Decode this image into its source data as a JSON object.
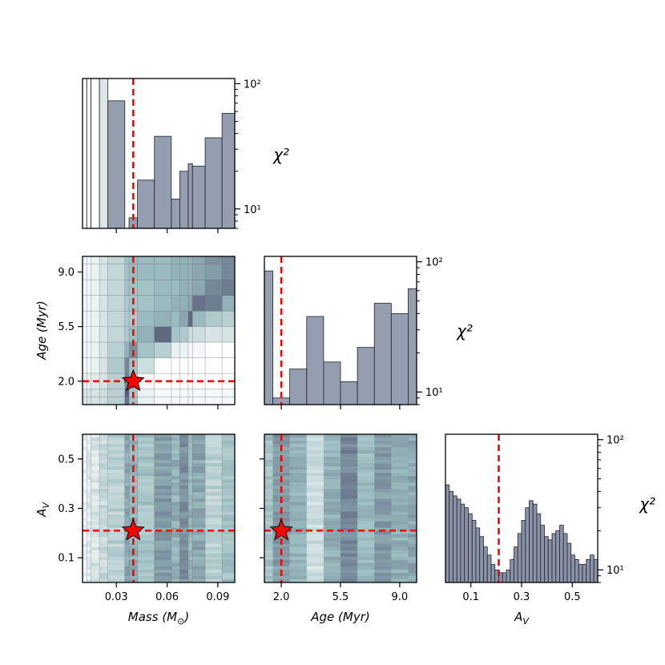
{
  "chart_data": {
    "type": "corner",
    "colors": {
      "bar": "#8a93a6",
      "bar_edge": "#1f2230",
      "marker": "#ff0000",
      "cmap_low": "#ffffff",
      "cmap_mid": "#9bbcbf",
      "cmap_high": "#4f5470"
    },
    "best_fit": {
      "mass": 0.04,
      "age": 2.0,
      "av": 0.21
    },
    "hist_ylabel": "χ²",
    "panels": {
      "mass_hist": {
        "type": "bar",
        "yscale": "log",
        "ylim": [
          7,
          110
        ],
        "xlim": [
          0.01,
          0.1
        ],
        "yticks": [
          "10¹",
          "10²"
        ],
        "bins": [
          {
            "x0": 0.01,
            "x1": 0.0125,
            "y": 110
          },
          {
            "x0": 0.0125,
            "x1": 0.015,
            "y": 110
          },
          {
            "x0": 0.015,
            "x1": 0.02,
            "y": 110
          },
          {
            "x0": 0.02,
            "x1": 0.025,
            "y": 110
          },
          {
            "x0": 0.025,
            "x1": 0.035,
            "y": 73
          },
          {
            "x0": 0.0375,
            "x1": 0.0425,
            "y": 8.5
          },
          {
            "x0": 0.0425,
            "x1": 0.0525,
            "y": 17
          },
          {
            "x0": 0.0525,
            "x1": 0.0625,
            "y": 38
          },
          {
            "x0": 0.0625,
            "x1": 0.0675,
            "y": 12
          },
          {
            "x0": 0.0675,
            "x1": 0.0725,
            "y": 20
          },
          {
            "x0": 0.0725,
            "x1": 0.075,
            "y": 23
          },
          {
            "x0": 0.075,
            "x1": 0.0825,
            "y": 22
          },
          {
            "x0": 0.0825,
            "x1": 0.0925,
            "y": 37
          },
          {
            "x0": 0.0925,
            "x1": 0.1,
            "y": 58
          }
        ]
      },
      "age_hist": {
        "type": "bar",
        "yscale": "log",
        "ylim": [
          8,
          110
        ],
        "xlim": [
          1.0,
          10.0
        ],
        "yticks": [
          "10¹",
          "10²"
        ],
        "bins": [
          {
            "x0": 1.0,
            "x1": 1.5,
            "y": 85
          },
          {
            "x0": 1.5,
            "x1": 2.5,
            "y": 9
          },
          {
            "x0": 2.5,
            "x1": 3.5,
            "y": 15
          },
          {
            "x0": 3.5,
            "x1": 4.5,
            "y": 38
          },
          {
            "x0": 4.5,
            "x1": 5.5,
            "y": 17
          },
          {
            "x0": 5.5,
            "x1": 6.5,
            "y": 12
          },
          {
            "x0": 6.5,
            "x1": 7.5,
            "y": 22
          },
          {
            "x0": 7.5,
            "x1": 8.5,
            "y": 48
          },
          {
            "x0": 8.5,
            "x1": 9.5,
            "y": 40
          },
          {
            "x0": 9.5,
            "x1": 10.0,
            "y": 62
          }
        ]
      },
      "av_hist": {
        "type": "bar",
        "yscale": "log",
        "ylim": [
          8,
          110
        ],
        "xlim": [
          0.0,
          0.6
        ],
        "bin_width": 0.015,
        "values": [
          45,
          40,
          37,
          35,
          32,
          30,
          27,
          24,
          21,
          18,
          15,
          13,
          11,
          10,
          9.5,
          9.5,
          10,
          12,
          15,
          19,
          24,
          30,
          34,
          32,
          27,
          22,
          18,
          17,
          19,
          20,
          22,
          19,
          16,
          13,
          12,
          11,
          11,
          12,
          13,
          12
        ],
        "yticks": [
          "10¹",
          "10²"
        ]
      },
      "age_vs_mass": {
        "type": "heatmap",
        "xlim": [
          0.01,
          0.1
        ],
        "ylim": [
          0.5,
          10.0
        ],
        "x_edges": [
          0.01,
          0.0125,
          0.015,
          0.02,
          0.025,
          0.035,
          0.0375,
          0.0425,
          0.0525,
          0.0625,
          0.0675,
          0.0725,
          0.075,
          0.0825,
          0.0925,
          0.1
        ],
        "y_edges": [
          0.5,
          1.0,
          1.5,
          2.5,
          3.5,
          4.5,
          5.5,
          6.5,
          7.5,
          8.5,
          9.5,
          10.0
        ],
        "z": [
          [
            0.2,
            0.2,
            0.2,
            0.25,
            0.35,
            0.85,
            0.45,
            0.1,
            0.05,
            0.05,
            0.05,
            0.05,
            0.05,
            0.05,
            0.05
          ],
          [
            0.2,
            0.2,
            0.2,
            0.25,
            0.35,
            0.95,
            0.4,
            0.1,
            0.05,
            0.05,
            0.05,
            0.05,
            0.05,
            0.05,
            0.05
          ],
          [
            0.1,
            0.1,
            0.15,
            0.2,
            0.35,
            0.8,
            0.4,
            0.05,
            0.0,
            0.0,
            0.0,
            0.0,
            0.0,
            0.0,
            0.0
          ],
          [
            0.05,
            0.05,
            0.1,
            0.2,
            0.4,
            0.75,
            0.45,
            0.25,
            0.0,
            0.0,
            0.0,
            0.0,
            0.0,
            0.0,
            0.0
          ],
          [
            0.05,
            0.05,
            0.1,
            0.2,
            0.35,
            0.55,
            0.7,
            0.45,
            0.35,
            0.1,
            0.1,
            0.05,
            0.05,
            0.0,
            0.0
          ],
          [
            0.05,
            0.05,
            0.1,
            0.2,
            0.3,
            0.4,
            0.5,
            0.55,
            0.9,
            0.45,
            0.4,
            0.25,
            0.25,
            0.2,
            0.2
          ],
          [
            0.05,
            0.05,
            0.1,
            0.2,
            0.3,
            0.4,
            0.4,
            0.5,
            0.55,
            0.5,
            0.6,
            0.9,
            0.5,
            0.4,
            0.35
          ],
          [
            0.05,
            0.05,
            0.1,
            0.2,
            0.3,
            0.4,
            0.45,
            0.45,
            0.5,
            0.55,
            0.55,
            0.6,
            0.85,
            0.8,
            0.55
          ],
          [
            0.05,
            0.05,
            0.1,
            0.2,
            0.3,
            0.45,
            0.45,
            0.45,
            0.5,
            0.5,
            0.55,
            0.55,
            0.6,
            0.75,
            0.8
          ],
          [
            0.05,
            0.05,
            0.1,
            0.2,
            0.3,
            0.45,
            0.5,
            0.5,
            0.5,
            0.55,
            0.55,
            0.55,
            0.6,
            0.65,
            0.75
          ],
          [
            0.05,
            0.05,
            0.1,
            0.2,
            0.3,
            0.45,
            0.5,
            0.5,
            0.5,
            0.55,
            0.55,
            0.55,
            0.6,
            0.7,
            0.75
          ]
        ]
      },
      "av_vs_mass": {
        "type": "heatmap",
        "xlim": [
          0.01,
          0.1
        ],
        "ylim": [
          0.0,
          0.6
        ],
        "x_edges": [
          0.01,
          0.0125,
          0.015,
          0.02,
          0.025,
          0.035,
          0.0375,
          0.0425,
          0.0525,
          0.0625,
          0.0675,
          0.0725,
          0.075,
          0.0825,
          0.0925,
          0.1
        ],
        "col_level": [
          0.1,
          0.15,
          0.2,
          0.28,
          0.35,
          0.6,
          0.55,
          0.45,
          0.65,
          0.55,
          0.7,
          0.55,
          0.6,
          0.35,
          0.45
        ]
      },
      "av_vs_age": {
        "type": "heatmap",
        "xlim": [
          1.0,
          10.0
        ],
        "ylim": [
          0.0,
          0.6
        ],
        "x_edges": [
          1.0,
          1.5,
          2.5,
          3.5,
          4.5,
          5.5,
          6.5,
          7.5,
          8.5,
          9.5,
          10.0
        ],
        "col_level": [
          0.45,
          0.65,
          0.55,
          0.25,
          0.55,
          0.75,
          0.5,
          0.65,
          0.55,
          0.6
        ]
      }
    },
    "tick_labels": {
      "mass": [
        "0.03",
        "0.06",
        "0.09"
      ],
      "age": [
        "2.0",
        "5.5",
        "9.0"
      ],
      "av": [
        "0.1",
        "0.3",
        "0.5"
      ]
    },
    "axis_labels": {
      "mass": "Mass (M",
      "mass_sun": "⊙",
      "mass_close": ")",
      "age": "Age (Myr)",
      "av": "A",
      "av_sub": "V"
    }
  }
}
